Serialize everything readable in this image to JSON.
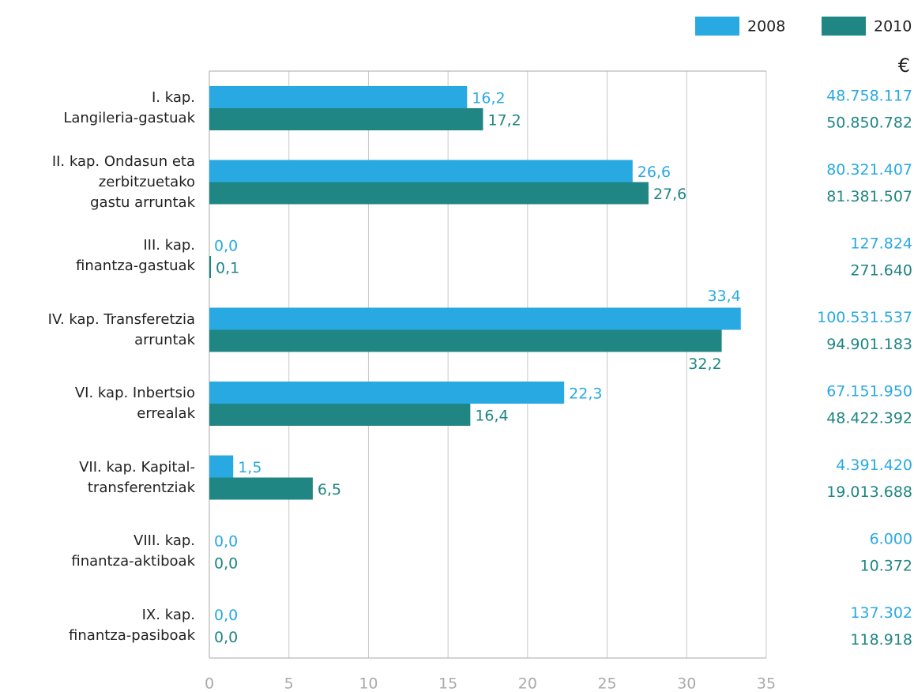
{
  "chart_data": {
    "type": "bar",
    "orientation": "horizontal",
    "categories": [
      "I. kap.\nLangileria-gastuak",
      "II. kap.  Ondasun eta\nzerbitzuetako\ngastu arruntak",
      "III. kap.\nfinantza-gastuak",
      "IV. kap.  Transferetzia\narruntak",
      "VI. kap.  Inbertsio\nerrealak",
      "VII. kap. Kapital-\ntransferentziak",
      "VIII. kap.\nfinantza-aktiboak",
      "IX. kap.\nfinantza-pasiboak"
    ],
    "series": [
      {
        "name": "2008",
        "color": "#29a9e1",
        "values": [
          16.2,
          26.6,
          0.0,
          33.4,
          22.3,
          1.5,
          0.0,
          0.0
        ],
        "value_labels": [
          "16,2",
          "26,6",
          "0,0",
          "33,4",
          "22,3",
          "1,5",
          "0,0",
          "0,0"
        ],
        "amounts": [
          "48.758.117",
          "80.321.407",
          "127.824",
          "100.531.537",
          "67.151.950",
          "4.391.420",
          "6.000",
          "137.302"
        ]
      },
      {
        "name": "2010",
        "color": "#1f8683",
        "values": [
          17.2,
          27.6,
          0.1,
          32.2,
          16.4,
          6.5,
          0.0,
          0.0
        ],
        "value_labels": [
          "17,2",
          "27,6",
          "0,1",
          "32,2",
          "16,4",
          "6,5",
          "0,0",
          "0,0"
        ],
        "amounts": [
          "50.850.782",
          "81.381.507",
          "271.640",
          "94.901.183",
          "48.422.392",
          "19.013.688",
          "10.372",
          "118.918"
        ]
      }
    ],
    "amount_unit": "€",
    "xlim": [
      0,
      35
    ],
    "xticks": [
      0,
      5,
      10,
      15,
      20,
      25,
      30,
      35
    ],
    "grid": true
  }
}
